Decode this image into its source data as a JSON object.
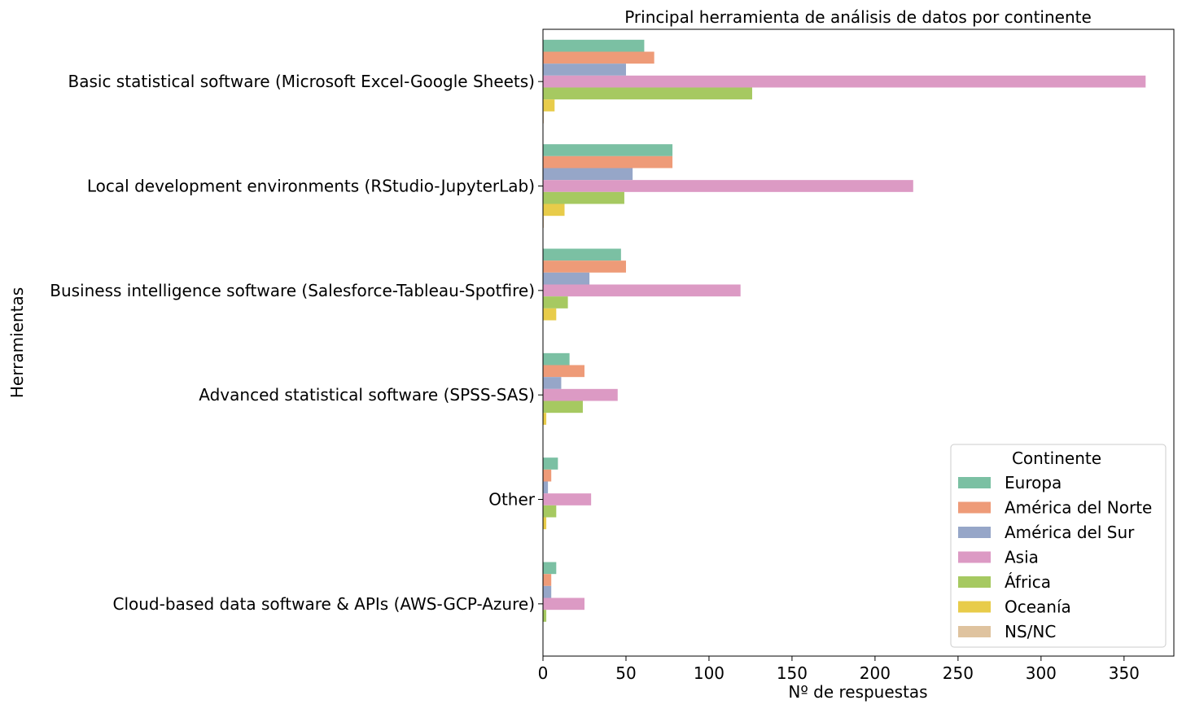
{
  "chart_data": {
    "type": "bar",
    "orientation": "horizontal",
    "title": "Principal herramienta de análisis de datos por continente",
    "xlabel": "Nº de respuestas",
    "ylabel": "Herramientas",
    "xlim": [
      0,
      380
    ],
    "xticks": [
      0,
      50,
      100,
      150,
      200,
      250,
      300,
      350
    ],
    "grid": false,
    "legend": {
      "title": "Continente",
      "position": "lower-right"
    },
    "categories": [
      "Basic statistical software (Microsoft Excel-Google Sheets)",
      "Local development environments (RStudio-JupyterLab)",
      "Business intelligence software (Salesforce-Tableau-Spotfire)",
      "Advanced statistical software (SPSS-SAS)",
      "Other",
      "Cloud-based data software & APIs (AWS-GCP-Azure)"
    ],
    "series": [
      {
        "name": "Europa",
        "color": "#7bc0a3",
        "values": [
          61,
          78,
          47,
          16,
          9,
          8
        ]
      },
      {
        "name": "América del Norte",
        "color": "#ee9b78",
        "values": [
          67,
          78,
          50,
          25,
          5,
          5
        ]
      },
      {
        "name": "América del Sur",
        "color": "#96a6c8",
        "values": [
          50,
          54,
          28,
          11,
          3,
          5
        ]
      },
      {
        "name": "Asia",
        "color": "#dc9ac4",
        "values": [
          363,
          223,
          119,
          45,
          29,
          25
        ]
      },
      {
        "name": "África",
        "color": "#a6c961",
        "values": [
          126,
          49,
          15,
          24,
          8,
          2
        ]
      },
      {
        "name": "Oceanía",
        "color": "#e8cc4a",
        "values": [
          7,
          13,
          8,
          2,
          2,
          0
        ]
      },
      {
        "name": "NS/NC",
        "color": "#dfc39f",
        "values": [
          0.5,
          0.5,
          0,
          0,
          0,
          0
        ]
      }
    ]
  }
}
